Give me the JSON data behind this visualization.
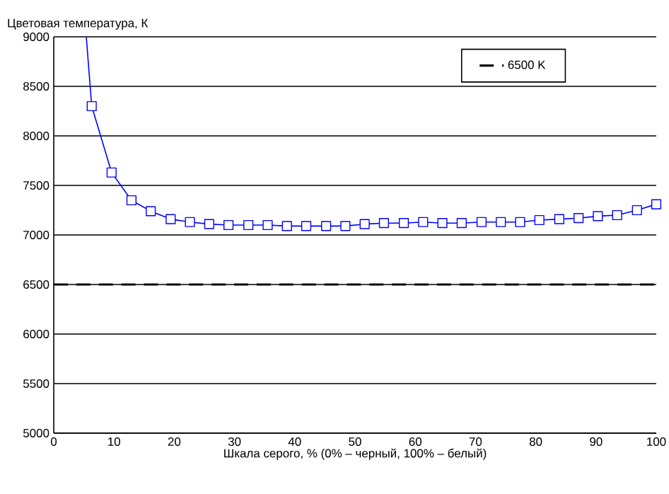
{
  "chart_data": {
    "type": "line",
    "ylabel": "Цветовая температура, К",
    "xlabel": "Шкала серого, % (0% – черный, 100% – белый)",
    "xlim": [
      0,
      100
    ],
    "xticks": [
      0,
      10,
      20,
      30,
      40,
      50,
      60,
      70,
      80,
      90,
      100
    ],
    "ylim": [
      5000,
      9000
    ],
    "yticks": [
      5000,
      5500,
      6000,
      6500,
      7000,
      7500,
      8000,
      8500,
      9000
    ],
    "grid": "y",
    "legend": "top right",
    "series": [
      {
        "color": "#0000ff",
        "marker": "square",
        "x": [
          6.3,
          9.6,
          12.9,
          16.1,
          19.4,
          22.6,
          25.8,
          29.0,
          32.3,
          35.5,
          38.7,
          41.9,
          45.2,
          48.4,
          51.6,
          54.8,
          58.1,
          61.3,
          64.5,
          67.7,
          71.0,
          74.2,
          77.4,
          80.6,
          83.9,
          87.1,
          90.3,
          93.5,
          96.8,
          100
        ],
        "values": [
          8300,
          7630,
          7350,
          7240,
          7160,
          7130,
          7110,
          7100,
          7100,
          7100,
          7090,
          7090,
          7090,
          7090,
          7110,
          7120,
          7120,
          7130,
          7120,
          7120,
          7130,
          7130,
          7130,
          7150,
          7160,
          7170,
          7190,
          7200,
          7250,
          7310
        ]
      },
      {
        "color": "#0000ff",
        "marker": "none",
        "x": [
          5.4,
          6.3
        ],
        "values": [
          9000,
          8300
        ]
      }
    ],
    "ref_lines": [
      {
        "axis": "y",
        "value": 6500,
        "label": "6500 K",
        "color": "#000000",
        "line_style": "dashed"
      }
    ]
  }
}
